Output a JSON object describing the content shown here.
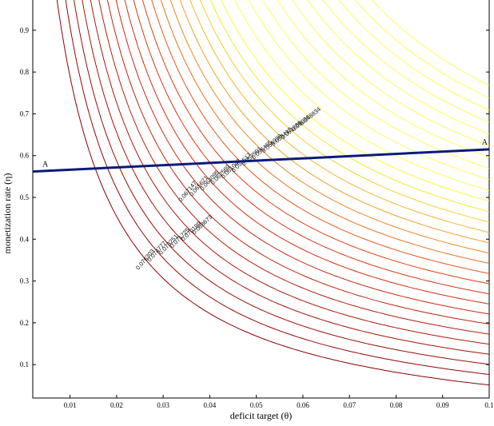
{
  "chart_data": {
    "type": "contour",
    "xlabel": "deficit target (θ)",
    "ylabel": "monetization rate (η)",
    "xlim": [
      0.002,
      0.1
    ],
    "ylim": [
      0.02,
      0.98
    ],
    "x_ticks": [
      "0.01",
      "0.02",
      "0.03",
      "0.04",
      "0.05",
      "0.06",
      "0.07",
      "0.08",
      "0.09",
      "0.1"
    ],
    "y_ticks": [
      "0.1",
      "0.2",
      "0.3",
      "0.4",
      "0.5",
      "0.6",
      "0.7",
      "0.8",
      "0.9"
    ],
    "contour_levels": [
      "0.076303",
      "0.074777",
      "0.073251",
      "0.071725",
      "0.070199",
      "0.068673",
      "0.067147",
      "0.065621",
      "0.064095",
      "0.062569",
      "0.061043",
      "0.059517",
      "0.057991",
      "0.056465",
      "0.054938",
      "0.053412",
      "0.051886",
      "0.05036",
      "0.048834"
    ],
    "color_low": "#ffff33",
    "color_high": "#8b0000",
    "line_AA": {
      "label_left": "A",
      "label_right": "A",
      "color": "#0a1a7a",
      "points": [
        [
          0.002,
          0.562
        ],
        [
          0.1,
          0.615
        ]
      ]
    },
    "grid": false
  }
}
